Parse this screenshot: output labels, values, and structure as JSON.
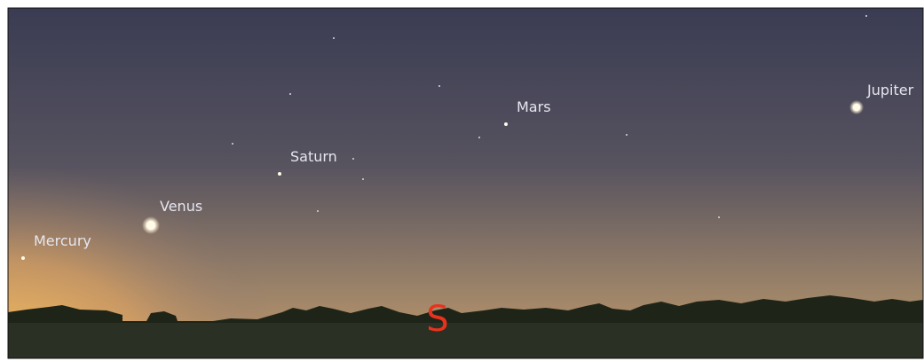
{
  "planets": [
    "Mercury",
    "Venus",
    "Saturn",
    "Mars",
    "Jupiter"
  ],
  "cardinal": "S"
}
